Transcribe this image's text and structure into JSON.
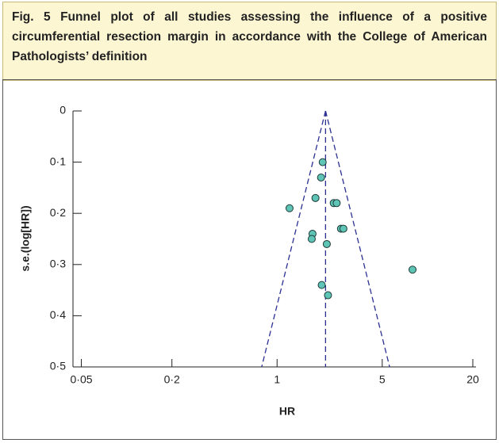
{
  "caption": "Fig. 5 Funnel plot of all studies assessing the influence of a positive circumferential resection margin in accordance with the College of American Pathologists’ definition",
  "chart_data": {
    "type": "scatter",
    "xlabel": "HR",
    "ylabel": "s.e.(log[HR])",
    "xscale": "log",
    "xlim": [
      0.044,
      21
    ],
    "xticks": [
      {
        "value": 0.05,
        "label": "0·05"
      },
      {
        "value": 0.2,
        "label": "0·2"
      },
      1,
      5,
      20
    ],
    "ylim": [
      0,
      0.5
    ],
    "y_inverted": true,
    "yticks": [
      0,
      {
        "value": 0.1,
        "label": "0·1"
      },
      {
        "value": 0.2,
        "label": "0·2"
      },
      {
        "value": 0.3,
        "label": "0·3"
      },
      {
        "value": 0.4,
        "label": "0·4"
      },
      {
        "value": 0.5,
        "label": "0·5"
      }
    ],
    "pooled": 2.1,
    "funnel_limits": [
      0.79,
      5.6
    ],
    "funnel_color": "#2b3090",
    "series": [
      {
        "color": "#5ec4b6",
        "x": [
          2.01,
          1.96,
          1.8,
          1.21,
          2.38,
          2.49,
          1.72,
          1.7,
          2.66,
          2.76,
          2.14,
          7.95,
          1.98,
          2.18
        ],
        "values": [
          0.1,
          0.13,
          0.17,
          0.19,
          0.18,
          0.18,
          0.24,
          0.25,
          0.23,
          0.23,
          0.26,
          0.31,
          0.34,
          0.36
        ]
      }
    ]
  }
}
